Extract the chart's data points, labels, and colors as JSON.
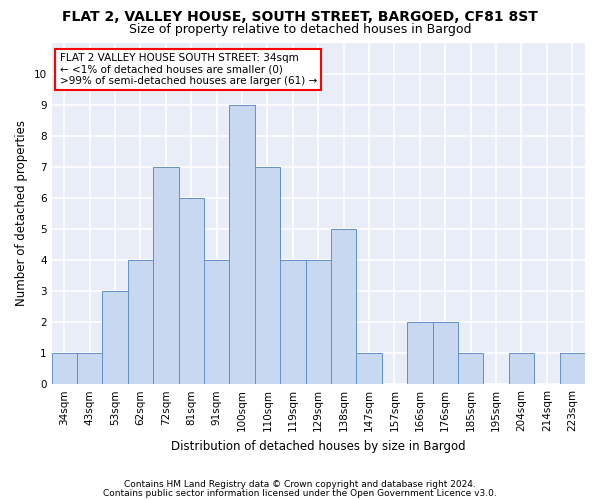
{
  "title1": "FLAT 2, VALLEY HOUSE, SOUTH STREET, BARGOED, CF81 8ST",
  "title2": "Size of property relative to detached houses in Bargod",
  "xlabel": "Distribution of detached houses by size in Bargod",
  "ylabel": "Number of detached properties",
  "categories": [
    "34sqm",
    "43sqm",
    "53sqm",
    "62sqm",
    "72sqm",
    "81sqm",
    "91sqm",
    "100sqm",
    "110sqm",
    "119sqm",
    "129sqm",
    "138sqm",
    "147sqm",
    "157sqm",
    "166sqm",
    "176sqm",
    "185sqm",
    "195sqm",
    "204sqm",
    "214sqm",
    "223sqm"
  ],
  "values": [
    1,
    1,
    3,
    4,
    7,
    6,
    4,
    9,
    7,
    4,
    4,
    5,
    1,
    0,
    2,
    2,
    1,
    0,
    1,
    0,
    1
  ],
  "bar_color": "#c8d8f0",
  "bar_edge_color": "#6090c8",
  "ylim": [
    0,
    11
  ],
  "yticks": [
    0,
    1,
    2,
    3,
    4,
    5,
    6,
    7,
    8,
    9,
    10
  ],
  "annotation_line1": "FLAT 2 VALLEY HOUSE SOUTH STREET: 34sqm",
  "annotation_line2": "← <1% of detached houses are smaller (0)",
  "annotation_line3": ">99% of semi-detached houses are larger (61) →",
  "footnote1": "Contains HM Land Registry data © Crown copyright and database right 2024.",
  "footnote2": "Contains public sector information licensed under the Open Government Licence v3.0.",
  "plot_bg_color": "#e8edf8",
  "fig_bg_color": "#ffffff",
  "grid_color": "#ffffff",
  "title1_fontsize": 10,
  "title2_fontsize": 9,
  "axis_label_fontsize": 8.5,
  "tick_fontsize": 7.5,
  "annotation_fontsize": 7.5,
  "footnote_fontsize": 6.5
}
